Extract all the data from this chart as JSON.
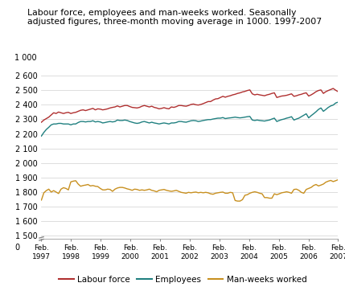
{
  "title": "Labour force, employees and man-weeks worked. Seasonally\nadjusted figures, three-month moving average in 1000. 1997-2007",
  "ytick_positions": [
    1500,
    1600,
    1700,
    1800,
    1900,
    2000,
    2100,
    2200,
    2300,
    2400,
    2500,
    2600
  ],
  "ytick_labels": [
    "1 500",
    "1 600",
    "1 700",
    "1 800",
    "1 900",
    "2 000",
    "2 100",
    "2 200",
    "2 300",
    "2 400",
    "2 500",
    "2 600"
  ],
  "ylim": [
    1480,
    2680
  ],
  "xtick_labels": [
    "Feb.\n1997",
    "Feb.\n1998",
    "Feb.\n1999",
    "Feb.\n2000",
    "Feb.\n2001",
    "Feb.\n2002",
    "Feb.\n2003",
    "Feb.\n2004",
    "Feb.\n2005",
    "Feb.\n2006",
    "Feb.\n2007"
  ],
  "legend": [
    "Labour force",
    "Employees",
    "Man-weeks worked"
  ],
  "colors": {
    "labour_force": "#b03030",
    "employees": "#208080",
    "man_weeks": "#c89020"
  },
  "labour_force": [
    2280,
    2295,
    2305,
    2315,
    2330,
    2345,
    2340,
    2350,
    2345,
    2340,
    2345,
    2348,
    2340,
    2345,
    2348,
    2355,
    2362,
    2365,
    2360,
    2365,
    2370,
    2375,
    2365,
    2372,
    2370,
    2365,
    2368,
    2372,
    2378,
    2382,
    2385,
    2392,
    2385,
    2390,
    2395,
    2395,
    2388,
    2382,
    2380,
    2378,
    2382,
    2390,
    2395,
    2390,
    2385,
    2390,
    2382,
    2378,
    2372,
    2375,
    2380,
    2375,
    2372,
    2385,
    2382,
    2387,
    2395,
    2395,
    2392,
    2390,
    2395,
    2402,
    2405,
    2400,
    2398,
    2402,
    2408,
    2415,
    2422,
    2422,
    2432,
    2440,
    2442,
    2450,
    2458,
    2452,
    2458,
    2462,
    2468,
    2472,
    2478,
    2482,
    2488,
    2492,
    2498,
    2502,
    2475,
    2468,
    2472,
    2468,
    2465,
    2462,
    2468,
    2472,
    2478,
    2482,
    2450,
    2455,
    2460,
    2462,
    2465,
    2470,
    2475,
    2458,
    2462,
    2468,
    2472,
    2478,
    2482,
    2460,
    2468,
    2478,
    2490,
    2498,
    2502,
    2478,
    2490,
    2498,
    2505,
    2512,
    2500,
    2490
  ],
  "employees": [
    2185,
    2210,
    2230,
    2245,
    2262,
    2268,
    2268,
    2272,
    2272,
    2268,
    2268,
    2268,
    2262,
    2268,
    2268,
    2278,
    2285,
    2285,
    2282,
    2285,
    2285,
    2290,
    2282,
    2285,
    2282,
    2275,
    2278,
    2282,
    2285,
    2282,
    2285,
    2295,
    2292,
    2292,
    2295,
    2292,
    2285,
    2280,
    2275,
    2272,
    2275,
    2282,
    2285,
    2280,
    2275,
    2280,
    2275,
    2272,
    2268,
    2272,
    2275,
    2272,
    2268,
    2275,
    2275,
    2278,
    2285,
    2285,
    2282,
    2280,
    2285,
    2290,
    2292,
    2290,
    2285,
    2288,
    2292,
    2295,
    2298,
    2298,
    2302,
    2305,
    2308,
    2308,
    2312,
    2305,
    2308,
    2310,
    2312,
    2315,
    2312,
    2310,
    2312,
    2315,
    2318,
    2320,
    2295,
    2292,
    2295,
    2292,
    2290,
    2288,
    2292,
    2295,
    2302,
    2308,
    2285,
    2292,
    2298,
    2302,
    2308,
    2312,
    2318,
    2295,
    2302,
    2308,
    2318,
    2328,
    2338,
    2310,
    2325,
    2338,
    2352,
    2368,
    2378,
    2355,
    2368,
    2382,
    2392,
    2398,
    2412,
    2418
  ],
  "man_weeks": [
    1745,
    1795,
    1810,
    1820,
    1800,
    1810,
    1800,
    1790,
    1820,
    1830,
    1825,
    1815,
    1870,
    1875,
    1878,
    1855,
    1840,
    1845,
    1848,
    1852,
    1842,
    1845,
    1840,
    1838,
    1825,
    1815,
    1815,
    1820,
    1818,
    1805,
    1820,
    1828,
    1832,
    1832,
    1828,
    1822,
    1818,
    1812,
    1820,
    1818,
    1812,
    1815,
    1812,
    1815,
    1820,
    1812,
    1808,
    1802,
    1812,
    1815,
    1818,
    1812,
    1808,
    1805,
    1808,
    1812,
    1805,
    1798,
    1795,
    1792,
    1798,
    1795,
    1798,
    1800,
    1795,
    1798,
    1795,
    1798,
    1795,
    1788,
    1785,
    1792,
    1795,
    1798,
    1800,
    1792,
    1792,
    1798,
    1795,
    1742,
    1738,
    1738,
    1748,
    1778,
    1782,
    1792,
    1798,
    1802,
    1798,
    1792,
    1788,
    1762,
    1762,
    1758,
    1758,
    1788,
    1782,
    1788,
    1795,
    1798,
    1802,
    1798,
    1792,
    1818,
    1820,
    1812,
    1798,
    1792,
    1818,
    1825,
    1832,
    1845,
    1852,
    1842,
    1848,
    1855,
    1868,
    1875,
    1880,
    1872,
    1878,
    1885
  ]
}
